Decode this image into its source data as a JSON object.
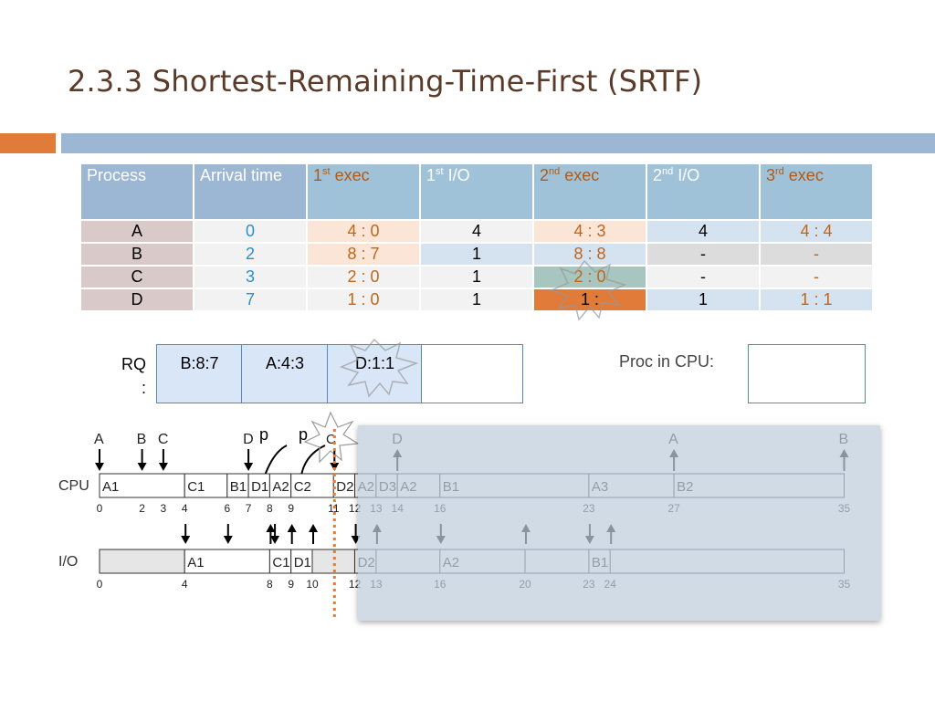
{
  "slide": {
    "title": "2.3.3 Shortest-Remaining-Time-First (SRTF)"
  },
  "table": {
    "headers": {
      "process": "Process",
      "arrival": "Arrival time",
      "exec1_base": "1",
      "exec1_sup": "st",
      "exec1_tail": " exec",
      "io1_base": "1",
      "io1_sup": "st",
      "io1_tail": " I/O",
      "exec2_base": "2",
      "exec2_sup": "nd",
      "exec2_tail": " exec",
      "io2_base": "2",
      "io2_sup": "nd",
      "io2_tail": " I/O",
      "exec3_base": "3",
      "exec3_sup": "rd",
      "exec3_tail": " exec"
    },
    "rows": [
      {
        "process": "A",
        "arrival": "0",
        "exec1": "4 : 0",
        "io1": "4",
        "exec2": "4 : 3",
        "io2": "4",
        "exec3": "4 : 4"
      },
      {
        "process": "B",
        "arrival": "2",
        "exec1": "8 : 7",
        "io1": "1",
        "exec2": "8 : 8",
        "io2": "-",
        "exec3": "-"
      },
      {
        "process": "C",
        "arrival": "3",
        "exec1": "2 : 0",
        "io1": "1",
        "exec2": "2 : 0",
        "io2": "-",
        "exec3": "-"
      },
      {
        "process": "D",
        "arrival": "7",
        "exec1": "1 : 0",
        "io1": "1",
        "exec2": "1 :",
        "io2": "1",
        "exec3": "1 : 1"
      }
    ]
  },
  "ready_queue": {
    "label_line1": "RQ",
    "label_line2": ":",
    "items": [
      "B:8:7",
      "A:4:3",
      "D:1:1",
      ""
    ]
  },
  "cpu_panel": {
    "label": "Proc in CPU:",
    "value": ""
  },
  "timeline": {
    "cpu_label": "CPU",
    "io_label": "I/O",
    "arrivals": [
      {
        "label": "A",
        "t": 0
      },
      {
        "label": "B",
        "t": 2
      },
      {
        "label": "C",
        "t": 3
      },
      {
        "label": "D",
        "t": 7
      }
    ],
    "preempt_marks": [
      "p",
      "p"
    ],
    "current_marker": "C",
    "future_events": [
      {
        "label": "D",
        "t": 14
      },
      {
        "label": "A",
        "t": 27
      },
      {
        "label": "B",
        "t": 35
      }
    ],
    "cpu_segments": [
      {
        "label": "A1",
        "start": 0,
        "end": 4
      },
      {
        "label": "C1",
        "start": 4,
        "end": 6
      },
      {
        "label": "B1",
        "start": 6,
        "end": 7
      },
      {
        "label": "D1",
        "start": 7,
        "end": 8
      },
      {
        "label": "A2",
        "start": 8,
        "end": 9
      },
      {
        "label": "C2",
        "start": 9,
        "end": 11
      },
      {
        "label": "D2",
        "start": 11,
        "end": 12
      },
      {
        "label": "A2",
        "start": 12,
        "end": 13
      },
      {
        "label": "D3",
        "start": 13,
        "end": 14
      },
      {
        "label": "A2",
        "start": 14,
        "end": 16
      },
      {
        "label": "B1",
        "start": 16,
        "end": 23
      },
      {
        "label": "A3",
        "start": 23,
        "end": 27
      },
      {
        "label": "B2",
        "start": 27,
        "end": 35
      }
    ],
    "cpu_ticks": [
      "0",
      "2",
      "3",
      "4",
      "6",
      "7",
      "8",
      "9",
      "11",
      "12",
      "13",
      "14",
      "16",
      "23",
      "27",
      "35"
    ],
    "io_segments": [
      {
        "label": "",
        "start": 0,
        "end": 4
      },
      {
        "label": "A1",
        "start": 4,
        "end": 8
      },
      {
        "label": "C1",
        "start": 8,
        "end": 9
      },
      {
        "label": "D1",
        "start": 9,
        "end": 10
      },
      {
        "label": "",
        "start": 10,
        "end": 12
      },
      {
        "label": "D2",
        "start": 12,
        "end": 13
      },
      {
        "label": "A2",
        "start": 16,
        "end": 20
      },
      {
        "label": "B1",
        "start": 23,
        "end": 24
      }
    ],
    "io_ticks": [
      "0",
      "4",
      "8",
      "9",
      "10",
      "12",
      "13",
      "16",
      "20",
      "23",
      "24",
      "35"
    ],
    "current_time": 11
  },
  "colors": {
    "title": "#5a3a28",
    "accent_orange": "#e07b39",
    "accent_blue": "#9bb7d4",
    "marker": "#e07b39"
  }
}
